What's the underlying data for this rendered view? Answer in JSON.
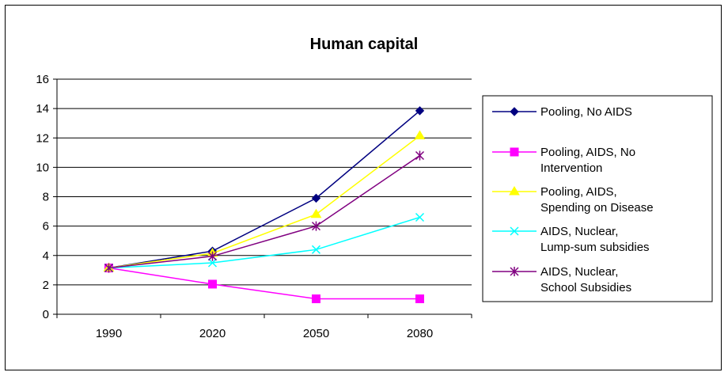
{
  "chart_data": {
    "type": "line",
    "title": "Human capital",
    "xlabel": "",
    "ylabel": "",
    "categories": [
      "1990",
      "2020",
      "2050",
      "2080"
    ],
    "ylim": [
      0,
      16
    ],
    "yticks": [
      0,
      2,
      4,
      6,
      8,
      10,
      12,
      14,
      16
    ],
    "grid": "horizontal",
    "legend_position": "right",
    "series": [
      {
        "name": "Pooling, No AIDS",
        "lines": [
          "Pooling, No AIDS"
        ],
        "color": "#000080",
        "marker": "diamond",
        "values": [
          3.15,
          4.3,
          7.9,
          13.85
        ]
      },
      {
        "name": "Pooling, AIDS, No Intervention",
        "lines": [
          "Pooling, AIDS, No",
          "Intervention"
        ],
        "color": "#FF00FF",
        "marker": "square",
        "values": [
          3.15,
          2.05,
          1.05,
          1.05
        ]
      },
      {
        "name": "Pooling, AIDS, Spending on Disease",
        "lines": [
          "Pooling, AIDS,",
          "Spending on Disease"
        ],
        "color": "#FFFF00",
        "marker": "triangle",
        "values": [
          3.15,
          4.15,
          6.8,
          12.15
        ]
      },
      {
        "name": "AIDS, Nuclear, Lump-sum subsidies",
        "lines": [
          "AIDS, Nuclear,",
          "Lump-sum subsidies"
        ],
        "color": "#00FFFF",
        "marker": "x",
        "values": [
          3.15,
          3.5,
          4.4,
          6.6
        ]
      },
      {
        "name": "AIDS, Nuclear, School Subsidies",
        "lines": [
          "AIDS, Nuclear,",
          "School Subsidies"
        ],
        "color": "#800080",
        "marker": "asterisk",
        "values": [
          3.15,
          3.95,
          6.0,
          10.8
        ]
      }
    ]
  }
}
